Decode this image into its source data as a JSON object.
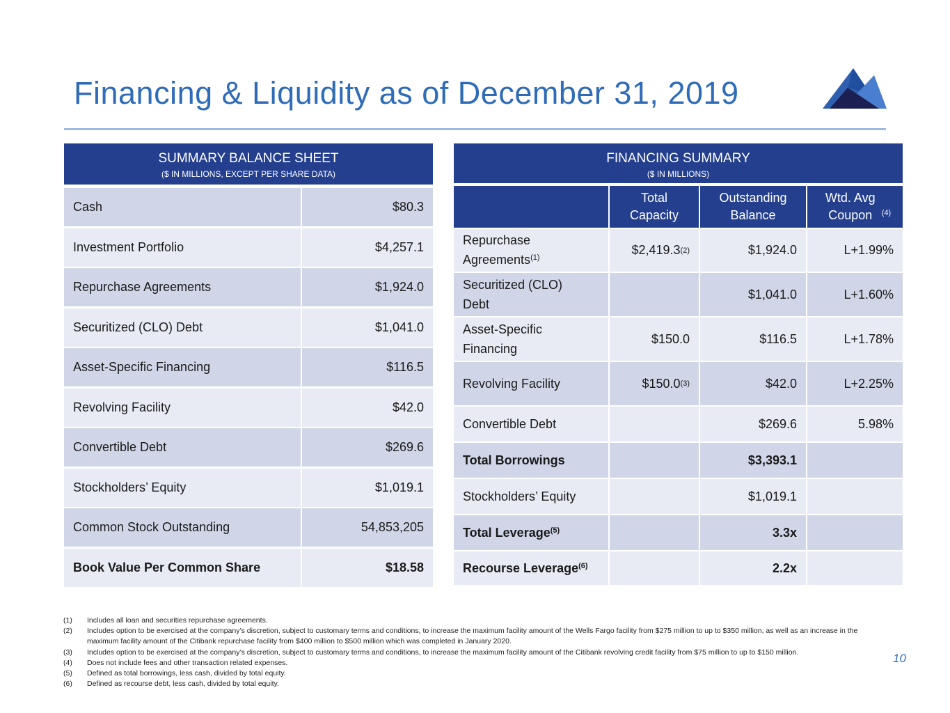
{
  "title": "Financing & Liquidity as of December 31, 2019",
  "page_number": "10",
  "balance_sheet": {
    "title": "SUMMARY BALANCE SHEET",
    "subtitle": "($ IN MILLIONS, EXCEPT PER SHARE DATA)",
    "rows": [
      [
        "Cash",
        "$80.3"
      ],
      [
        "Investment Portfolio",
        "$4,257.1"
      ],
      [
        "Repurchase Agreements",
        "$1,924.0"
      ],
      [
        "Securitized (CLO) Debt",
        "$1,041.0"
      ],
      [
        "Asset-Specific Financing",
        "$116.5"
      ],
      [
        "Revolving Facility",
        "$42.0"
      ],
      [
        "Convertible Debt",
        "$269.6"
      ],
      [
        "Stockholders’ Equity",
        "$1,019.1"
      ],
      [
        "Common Stock Outstanding",
        "54,853,205"
      ],
      [
        "Book Value Per Common Share",
        "$18.58"
      ]
    ]
  },
  "financing": {
    "title": "FINANCING SUMMARY",
    "subtitle": "($ IN MILLIONS)",
    "columns": [
      "",
      "Total Capacity",
      "Outstanding Balance",
      "Wtd. Avg Coupon"
    ],
    "coupon_note": "(4)",
    "rows": [
      {
        "label": "Repurchase Agreements",
        "note": "(1)",
        "capacity": "$2,419.3",
        "cap_note": "(2)",
        "balance": "$1,924.0",
        "coupon": "L+1.99%"
      },
      {
        "label": "Securitized (CLO) Debt",
        "note": "",
        "capacity": "",
        "cap_note": "",
        "balance": "$1,041.0",
        "coupon": "L+1.60%"
      },
      {
        "label": "Asset-Specific Financing",
        "note": "",
        "capacity": "$150.0",
        "cap_note": "",
        "balance": "$116.5",
        "coupon": "L+1.78%"
      },
      {
        "label": "Revolving Facility",
        "note": "",
        "capacity": "$150.0",
        "cap_note": "(3)",
        "balance": "$42.0",
        "coupon": "L+2.25%"
      },
      {
        "label": "Convertible Debt",
        "note": "",
        "capacity": "",
        "cap_note": "",
        "balance": "$269.6",
        "coupon": "5.98%"
      },
      {
        "label": "Total Borrowings",
        "note": "",
        "capacity": "",
        "cap_note": "",
        "balance": "$3,393.1",
        "coupon": ""
      },
      {
        "label": "Stockholders’ Equity",
        "note": "",
        "capacity": "",
        "cap_note": "",
        "balance": "$1,019.1",
        "coupon": ""
      },
      {
        "label": "Total Leverage",
        "note": "(5)",
        "capacity": "",
        "cap_note": "",
        "balance": "3.3x",
        "coupon": ""
      },
      {
        "label": "Recourse Leverage",
        "note": "(6)",
        "capacity": "",
        "cap_note": "",
        "balance": "2.2x",
        "coupon": ""
      }
    ]
  },
  "footnotes": [
    [
      "(1)",
      "Includes all loan and securities repurchase agreements."
    ],
    [
      "(2)",
      "Includes option to be exercised at the company’s discretion, subject to customary terms and conditions, to increase the maximum facility amount of the Wells Fargo facility from $275 million to up to $350 million, as well as an increase in the maximum facility amount of the Citibank repurchase facility from $400 million to $500 million which was completed in January 2020."
    ],
    [
      "(3)",
      "Includes option to be exercised at the company’s discretion, subject to customary terms and conditions, to increase the maximum facility amount of the Citibank revolving credit facility from $75 million to up to $150 million."
    ],
    [
      "(4)",
      "Does not include fees and other transaction related expenses."
    ],
    [
      "(5)",
      "Defined as total borrowings, less cash, divided by total equity."
    ],
    [
      "(6)",
      "Defined as recourse debt, less cash, divided by total equity."
    ]
  ]
}
